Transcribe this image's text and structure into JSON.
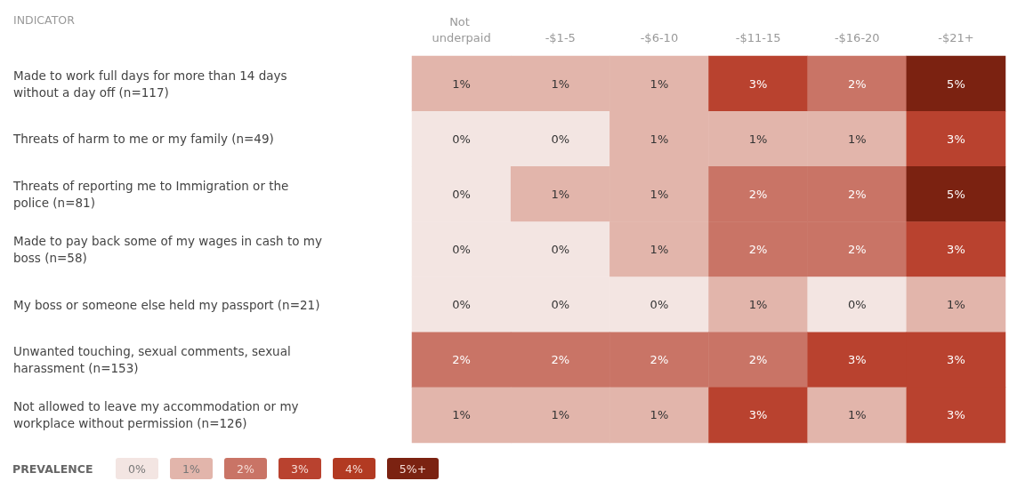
{
  "chart_data": {
    "type": "heatmap",
    "ylabel": "INDICATOR",
    "legend_title": "PREVALENCE",
    "categories": [
      "Not underpaid",
      "-$1-5",
      "-$6-10",
      "-$11-15",
      "-$16-20",
      "-$21+"
    ],
    "y_categories": [
      "Made to work full days for more than 14 days without a day off (n=117)",
      "Threats of harm to me or my family (n=49)",
      "Threats of reporting me to Immigration or the police (n=81)",
      "Made to pay back some of my wages in cash to my boss (n=58)",
      "My boss or someone else held my passport (n=21)",
      "Unwanted touching, sexual comments, sexual harassment (n=153)",
      "Not allowed to leave my accommodation or my workplace without permission (n=126)"
    ],
    "cells": [
      [
        1,
        1,
        1,
        3,
        2,
        5
      ],
      [
        0,
        0,
        1,
        1,
        1,
        3
      ],
      [
        0,
        1,
        1,
        2,
        2,
        5
      ],
      [
        0,
        0,
        1,
        2,
        2,
        3
      ],
      [
        0,
        0,
        0,
        1,
        0,
        1
      ],
      [
        2,
        2,
        2,
        2,
        3,
        3
      ],
      [
        1,
        1,
        1,
        3,
        1,
        3
      ]
    ],
    "cell_labels": [
      [
        "1%",
        "1%",
        "1%",
        "3%",
        "2%",
        "5%"
      ],
      [
        "0%",
        "0%",
        "1%",
        "1%",
        "1%",
        "3%"
      ],
      [
        "0%",
        "1%",
        "1%",
        "2%",
        "2%",
        "5%"
      ],
      [
        "0%",
        "0%",
        "1%",
        "2%",
        "2%",
        "3%"
      ],
      [
        "0%",
        "0%",
        "0%",
        "1%",
        "0%",
        "1%"
      ],
      [
        "2%",
        "2%",
        "2%",
        "2%",
        "3%",
        "3%"
      ],
      [
        "1%",
        "1%",
        "1%",
        "3%",
        "1%",
        "3%"
      ]
    ],
    "cticks": [
      {
        "value": 0,
        "label": "0%"
      },
      {
        "value": 1,
        "label": "1%"
      },
      {
        "value": 2,
        "label": "2%"
      },
      {
        "value": 3,
        "label": "3%"
      },
      {
        "value": 4,
        "label": "4%"
      },
      {
        "value": 5,
        "label": "5%+"
      }
    ],
    "colors": [
      "#f3e5e2",
      "#e2b5ab",
      "#c97466",
      "#b9422f",
      "#b23a22",
      "#7b2211"
    ]
  }
}
